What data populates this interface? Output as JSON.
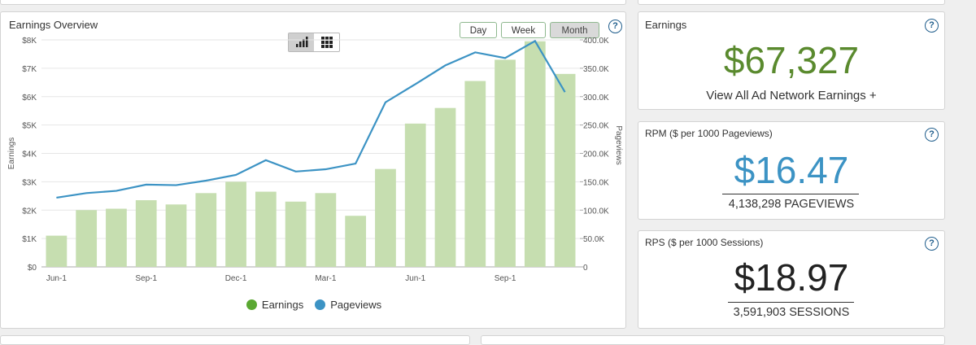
{
  "overview": {
    "title": "Earnings Overview",
    "buttons": [
      "Day",
      "Week",
      "Month"
    ],
    "active_button": "Month",
    "help": "?"
  },
  "chart_data": {
    "type": "bar+line",
    "title": "Earnings Overview",
    "ylabel": "Earnings",
    "y2label": "Pageviews",
    "ylim": [
      0,
      8000
    ],
    "y2lim": [
      0,
      400000
    ],
    "y_ticks": [
      "$0",
      "$1K",
      "$2K",
      "$3K",
      "$4K",
      "$5K",
      "$6K",
      "$7K",
      "$8K"
    ],
    "y2_ticks": [
      "0",
      "50.0K",
      "100.0K",
      "150.0K",
      "200.0K",
      "250.0K",
      "300.0K",
      "350.0K",
      "400.0K"
    ],
    "x_tick_labels": [
      "Jun-1",
      "Sep-1",
      "Dec-1",
      "Mar-1",
      "Jun-1",
      "Sep-1"
    ],
    "x_tick_indices": [
      0,
      3,
      6,
      9,
      12,
      15
    ],
    "series": [
      {
        "name": "Earnings",
        "kind": "bar",
        "color": "#c6deb0",
        "values": [
          1100,
          2000,
          2050,
          2350,
          2200,
          2600,
          3000,
          2650,
          2300,
          2600,
          1800,
          3450,
          5050,
          5600,
          6550,
          7300,
          7950,
          6800
        ]
      },
      {
        "name": "Pageviews",
        "kind": "line",
        "color": "#3c93c4",
        "values": [
          122000,
          130000,
          134000,
          145000,
          144000,
          152000,
          162000,
          188000,
          168000,
          172000,
          182000,
          290000,
          322000,
          355000,
          378000,
          368000,
          398000,
          308000
        ]
      }
    ],
    "legend_position": "bottom",
    "grid": true
  },
  "earnings": {
    "title": "Earnings",
    "value": "$67,327",
    "link": "View All Ad Network Earnings +",
    "value_color": "#5a8a2e"
  },
  "rpm": {
    "title": "RPM ($ per 1000 Pageviews)",
    "value": "$16.47",
    "sub": "4,138,298 PAGEVIEWS",
    "value_color": "#3c93c4"
  },
  "rps": {
    "title": "RPS ($ per 1000 Sessions)",
    "value": "$18.97",
    "sub": "3,591,903 SESSIONS",
    "value_color": "#222222"
  }
}
